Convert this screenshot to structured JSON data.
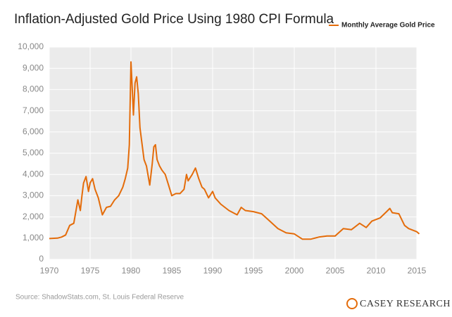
{
  "chart_data": {
    "type": "line",
    "title": "Inflation-Adjusted Gold Price Using 1980 CPI Formula",
    "source": "Source: ShadowStats.com, St. Louis Federal Reserve",
    "logo": "CASEY RESEARCH",
    "legend": "top-right",
    "grid": true,
    "x": [
      1970,
      1971,
      1971.5,
      1972,
      1972.5,
      1973,
      1973.5,
      1973.8,
      1974,
      1974.2,
      1974.5,
      1974.8,
      1975,
      1975.3,
      1975.6,
      1976,
      1976.5,
      1977,
      1977.5,
      1978,
      1978.5,
      1979,
      1979.3,
      1979.6,
      1979.8,
      1980.0,
      1980.1,
      1980.3,
      1980.5,
      1980.7,
      1980.9,
      1981.1,
      1981.3,
      1981.6,
      1981.9,
      1982.3,
      1982.6,
      1982.8,
      1983.0,
      1983.2,
      1983.5,
      1983.8,
      1984.2,
      1984.6,
      1985,
      1985.5,
      1986,
      1986.5,
      1986.8,
      1987,
      1987.5,
      1987.9,
      1988.3,
      1988.7,
      1989,
      1989.5,
      1990,
      1990.3,
      1991,
      1992,
      1993,
      1993.5,
      1994,
      1995,
      1996,
      1997,
      1998,
      1999,
      2000,
      2001,
      2002,
      2003,
      2004,
      2005,
      2006,
      2007,
      2008,
      2008.8,
      2009.5,
      2010.5,
      2011.3,
      2011.7,
      2012,
      2012.8,
      2013.5,
      2014,
      2015,
      2015.3
    ],
    "series": [
      {
        "name": "Monthly Average Gold Price",
        "color": "#e46c0a",
        "values": [
          980,
          1000,
          1050,
          1150,
          1600,
          1700,
          2800,
          2300,
          3000,
          3600,
          3900,
          3200,
          3600,
          3800,
          3300,
          2900,
          2100,
          2450,
          2500,
          2800,
          3000,
          3400,
          3800,
          4300,
          5400,
          9300,
          8500,
          6800,
          8300,
          8600,
          7800,
          6200,
          5600,
          4700,
          4400,
          3500,
          4500,
          5300,
          5400,
          4700,
          4400,
          4200,
          4000,
          3500,
          3000,
          3100,
          3100,
          3300,
          4000,
          3700,
          4000,
          4300,
          3800,
          3400,
          3300,
          2900,
          3200,
          2900,
          2600,
          2300,
          2100,
          2450,
          2300,
          2250,
          2150,
          1800,
          1450,
          1250,
          1200,
          950,
          950,
          1050,
          1100,
          1100,
          1450,
          1400,
          1700,
          1500,
          1800,
          1950,
          2250,
          2400,
          2200,
          2150,
          1600,
          1450,
          1300,
          1200
        ]
      }
    ],
    "xlim": [
      1970,
      2015
    ],
    "xticks": [
      1970,
      1975,
      1980,
      1985,
      1990,
      1995,
      2000,
      2005,
      2010,
      2015
    ],
    "ylim": [
      0,
      10000
    ],
    "yticks": [
      0,
      {
        "value": 1000,
        "label": "1,000"
      },
      {
        "value": 2000,
        "label": "2,000"
      },
      {
        "value": 3000,
        "label": "3,000"
      },
      {
        "value": 4000,
        "label": "4,000"
      },
      {
        "value": 5000,
        "label": "5,000"
      },
      {
        "value": 6000,
        "label": "6,000"
      },
      {
        "value": 7000,
        "label": "7,000"
      },
      {
        "value": 8000,
        "label": "8,000"
      },
      {
        "value": 9000,
        "label": "9,000"
      },
      {
        "value": 10000,
        "label": "10,000"
      }
    ]
  }
}
